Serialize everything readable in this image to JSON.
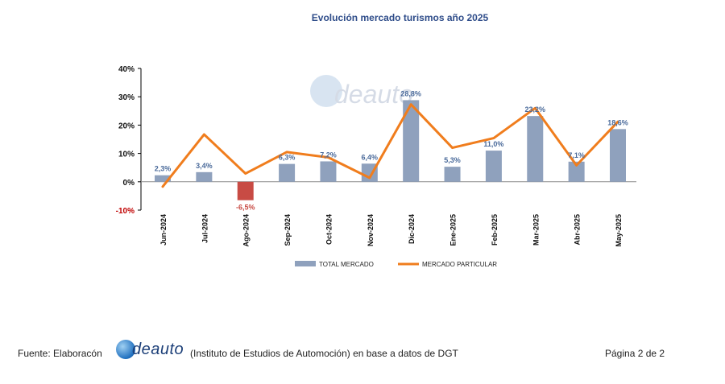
{
  "chart_data": {
    "type": "bar+line",
    "title": "Evolución mercado turismos año 2025",
    "categories": [
      "Jun-2024",
      "Jul-2024",
      "Ago-2024",
      "Sep-2024",
      "Oct-2024",
      "Nov-2024",
      "Dic-2024",
      "Ene-2025",
      "Feb-2025",
      "Mar-2025",
      "Abr-2025",
      "May-2025"
    ],
    "series": [
      {
        "name": "TOTAL MERCADO",
        "kind": "bar",
        "color": "#8fa1bd",
        "values": [
          2.3,
          3.4,
          -6.5,
          6.3,
          7.2,
          6.4,
          28.8,
          5.3,
          11.0,
          23.2,
          7.1,
          18.6
        ],
        "labels": [
          "2,3%",
          "3,4%",
          "-6,5%",
          "6,3%",
          "7,2%",
          "6,4%",
          "28,8%",
          "5,3%",
          "11,0%",
          "23,2%",
          "7,1%",
          "18,6%"
        ]
      },
      {
        "name": "MERCADO PARTICULAR",
        "kind": "line",
        "color": "#f07d1d",
        "values": [
          -1.7,
          16.7,
          2.9,
          10.5,
          8.6,
          1.4,
          27.3,
          12.0,
          15.4,
          26.0,
          5.8,
          21.2
        ]
      }
    ],
    "negative_bar_color": "#c84b44",
    "negative_tick_color": "#c00000",
    "label_color": "#4a6a9a",
    "ylim": [
      -10,
      40
    ],
    "yticks": [
      -10,
      0,
      10,
      20,
      30,
      40
    ],
    "ytick_labels": [
      "-10%",
      "0%",
      "10%",
      "20%",
      "30%",
      "40%"
    ],
    "grid": false,
    "legend_position": "bottom"
  },
  "watermark": {
    "text": "deauto"
  },
  "footer": {
    "left": "Fuente: Elaboracón",
    "logo_text": "deauto",
    "middle": "(Instituto de Estudios de Automoción) en base a datos de DGT",
    "right": "Página 2 de 2"
  }
}
